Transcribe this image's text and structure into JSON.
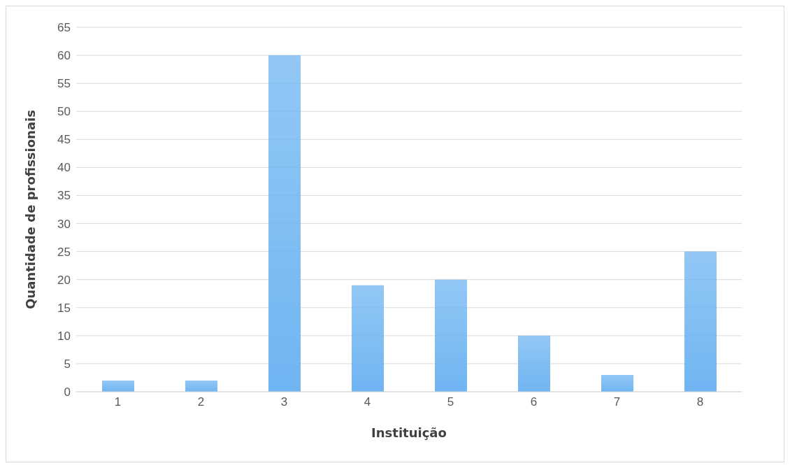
{
  "chart_data": {
    "type": "bar",
    "xlabel": "Instituição",
    "ylabel": "Quantidade de profissionais",
    "categories": [
      "1",
      "2",
      "3",
      "4",
      "5",
      "6",
      "7",
      "8"
    ],
    "values": [
      2,
      2,
      60,
      19,
      20,
      10,
      3,
      25
    ],
    "color": "#6fb5f2",
    "ylim": [
      0,
      65
    ],
    "yticks": [
      0,
      5,
      10,
      15,
      20,
      25,
      30,
      35,
      40,
      45,
      50,
      55,
      60,
      65
    ],
    "grid": "y"
  }
}
